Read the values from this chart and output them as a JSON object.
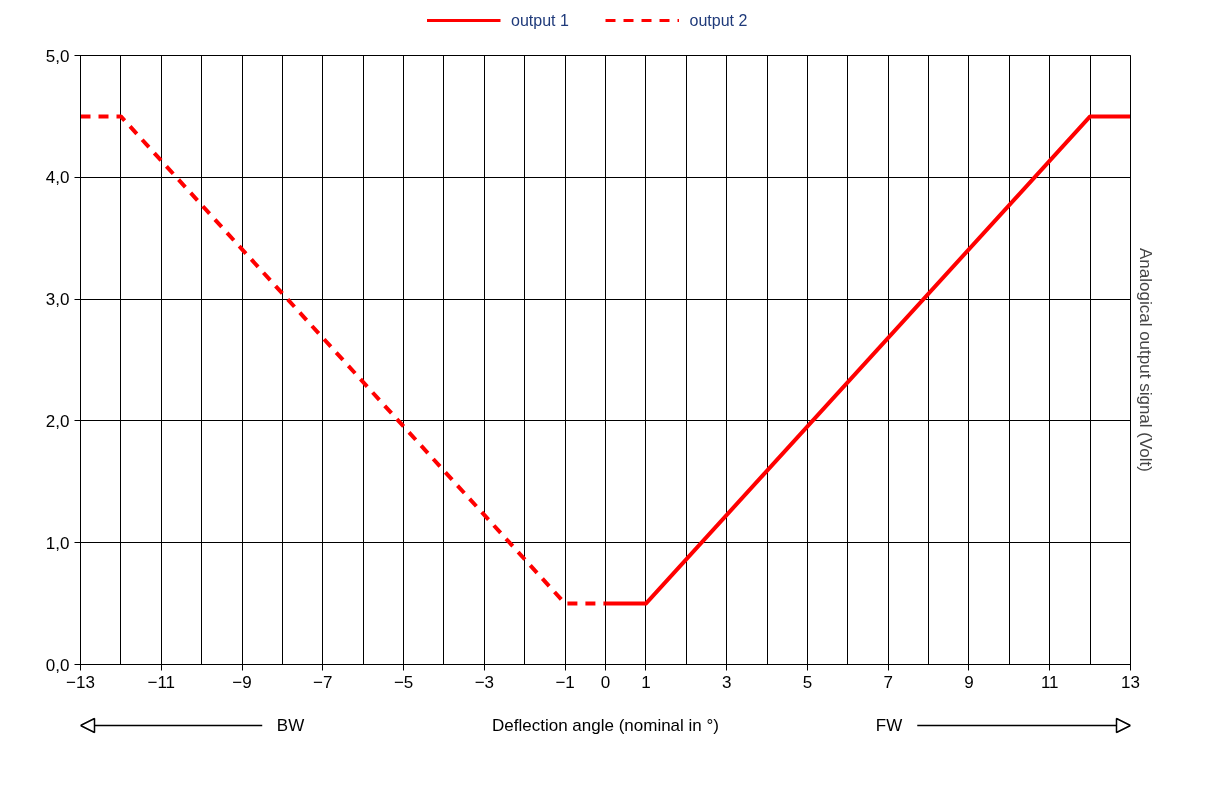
{
  "chart_data": {
    "type": "line",
    "xlabel": "Deflection angle (nominal in °)",
    "ylabel": "Analogical output signal (Volt)",
    "series": [
      {
        "name": "output 1",
        "color": "#ff0000",
        "line_style": "solid",
        "x": [
          0,
          1,
          12,
          13
        ],
        "values": [
          0.5,
          0.5,
          4.5,
          4.5
        ]
      },
      {
        "name": "output 2",
        "color": "#ff0000",
        "line_style": "dashed",
        "x": [
          -13,
          -12,
          -1,
          0
        ],
        "values": [
          4.5,
          4.5,
          0.5,
          0.5
        ]
      }
    ],
    "xlim": [
      -13,
      13
    ],
    "xticks": [
      -13,
      -11,
      -9,
      -7,
      -5,
      -3,
      -1,
      0,
      1,
      3,
      5,
      7,
      9,
      11,
      13
    ],
    "ylim": [
      0,
      5
    ],
    "yticks": [
      {
        "value": 0,
        "label": "0,0"
      },
      {
        "value": 1,
        "label": "1,0"
      },
      {
        "value": 2,
        "label": "2,0"
      },
      {
        "value": 3,
        "label": "3,0"
      },
      {
        "value": 4,
        "label": "4,0"
      },
      {
        "value": 5,
        "label": "5,0"
      }
    ],
    "grid": true,
    "legend": "top",
    "marker": "none",
    "annotations": [
      "BW",
      "FW"
    ]
  }
}
